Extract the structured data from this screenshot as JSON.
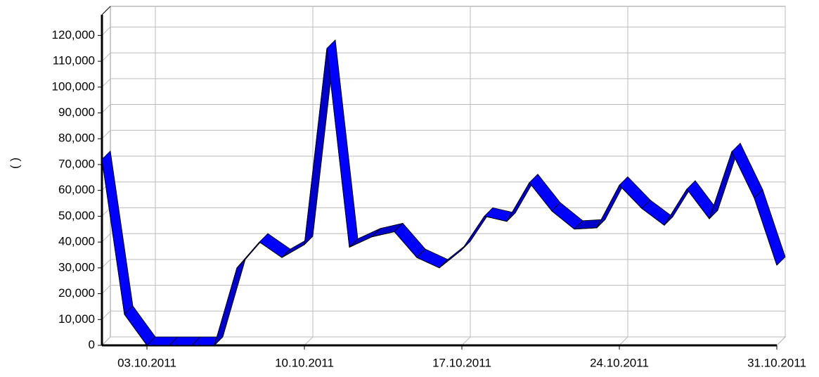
{
  "chart_data": {
    "type": "line3d",
    "y_label": "( )",
    "categories": [
      null,
      null,
      "03.10.2011",
      null,
      null,
      null,
      null,
      null,
      null,
      "10.10.2011",
      null,
      null,
      null,
      null,
      null,
      null,
      "17.10.2011",
      null,
      null,
      null,
      null,
      null,
      null,
      "24.10.2011",
      null,
      null,
      null,
      null,
      null,
      null,
      "31.10.2011"
    ],
    "series": [
      {
        "color": "#0000ff",
        "values": [
          72000,
          12000,
          0,
          0,
          0,
          0,
          30000,
          40000,
          34000,
          39000,
          115000,
          38000,
          42000,
          44000,
          34000,
          30000,
          37000,
          50000,
          48000,
          63000,
          52000,
          45000,
          45500,
          62000,
          53000,
          46500,
          60500,
          49000,
          75000,
          57000,
          31000
        ]
      }
    ],
    "ylim": [
      0,
      128000
    ],
    "yticks": [
      0,
      {
        "value": 10000,
        "label": "10,000"
      },
      {
        "value": 20000,
        "label": "20,000"
      },
      {
        "value": 30000,
        "label": "30,000"
      },
      {
        "value": 40000,
        "label": "40,000"
      },
      {
        "value": 50000,
        "label": "50,000"
      },
      {
        "value": 60000,
        "label": "60,000"
      },
      {
        "value": 70000,
        "label": "70,000"
      },
      {
        "value": 80000,
        "label": "80,000"
      },
      {
        "value": 90000,
        "label": "90,000"
      },
      {
        "value": 100000,
        "label": "100,000"
      },
      {
        "value": 110000,
        "label": "110,000"
      },
      {
        "value": 120000,
        "label": "120,000"
      }
    ],
    "grid": true
  }
}
